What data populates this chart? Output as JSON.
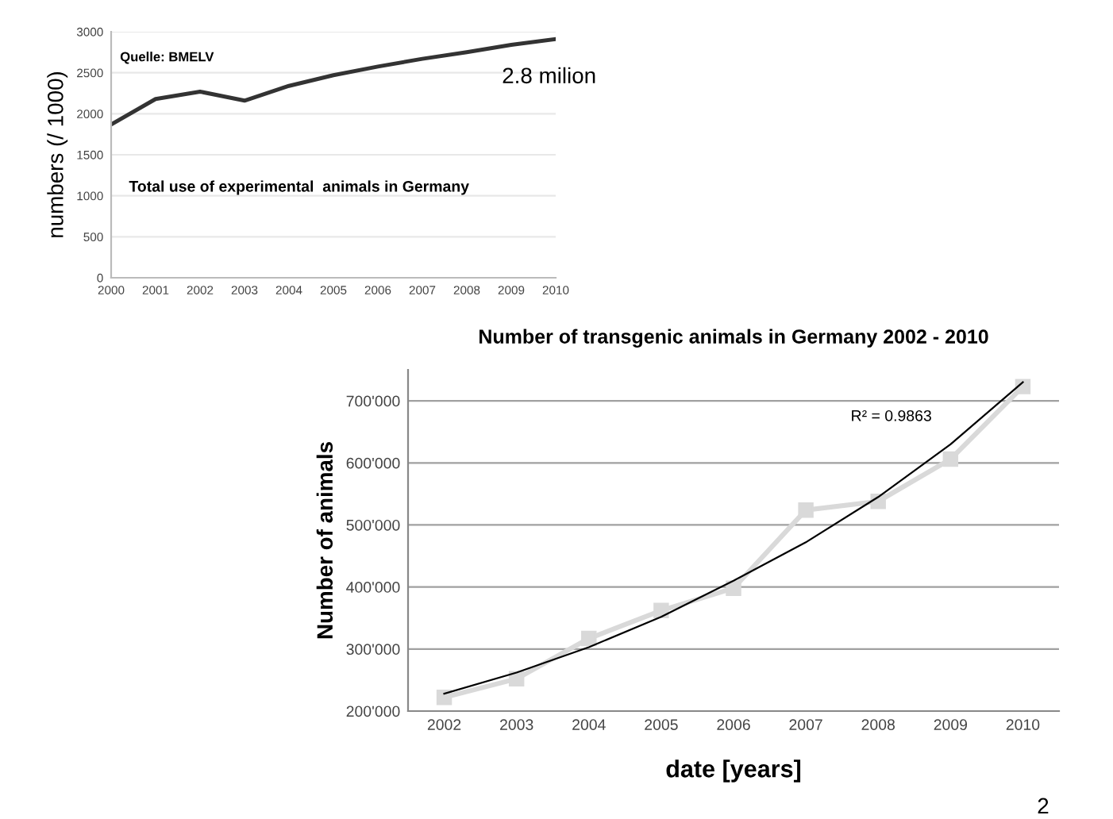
{
  "chart_data": [
    {
      "type": "line",
      "ylabel": "numbers (/ 1000)",
      "categories": [
        "2000",
        "2001",
        "2002",
        "2003",
        "2004",
        "2005",
        "2006",
        "2007",
        "2008",
        "2009",
        "2010"
      ],
      "series": [
        {
          "color": "#333333",
          "values": [
            1870,
            2180,
            2270,
            2160,
            2340,
            2470,
            2575,
            2670,
            2750,
            2840,
            2910
          ]
        }
      ],
      "ylim": [
        0,
        3000
      ],
      "yticks": [
        0,
        500,
        1000,
        1500,
        2000,
        2500,
        3000
      ],
      "grid": "y",
      "legend": false,
      "marker": "none",
      "annotations": [
        "Quelle: BMELV",
        "Total use of experimental  animals in Germany",
        {
          "text": "2.8 milion",
          "x": "2010",
          "y": 2910
        }
      ]
    },
    {
      "type": "line",
      "title": "Number of transgenic animals in Germany 2002 - 2010",
      "xlabel": "date [years]",
      "ylabel": "Number of animals",
      "categories": [
        "2002",
        "2003",
        "2004",
        "2005",
        "2006",
        "2007",
        "2008",
        "2009",
        "2010"
      ],
      "series": [
        {
          "color": "#d9d9d9",
          "marker": "square",
          "values": [
            222000,
            252000,
            317000,
            362000,
            398000,
            524000,
            538000,
            606000,
            723000
          ]
        },
        {
          "color": "#000000",
          "marker": "none",
          "values": [
            228000,
            262000,
            303000,
            352000,
            410000,
            472000,
            545000,
            630000,
            730000
          ]
        }
      ],
      "ylim": [
        200000,
        750000
      ],
      "yticks": [
        {
          "value": 200000,
          "label": "200'000"
        },
        {
          "value": 300000,
          "label": "300'000"
        },
        {
          "value": 400000,
          "label": "400'000"
        },
        {
          "value": 500000,
          "label": "500'000"
        },
        {
          "value": 600000,
          "label": "600'000"
        },
        {
          "value": 700000,
          "label": "700'000"
        }
      ],
      "grid": "y",
      "legend": false,
      "annotations": [
        "R² = 0.9863",
        "2"
      ]
    }
  ]
}
